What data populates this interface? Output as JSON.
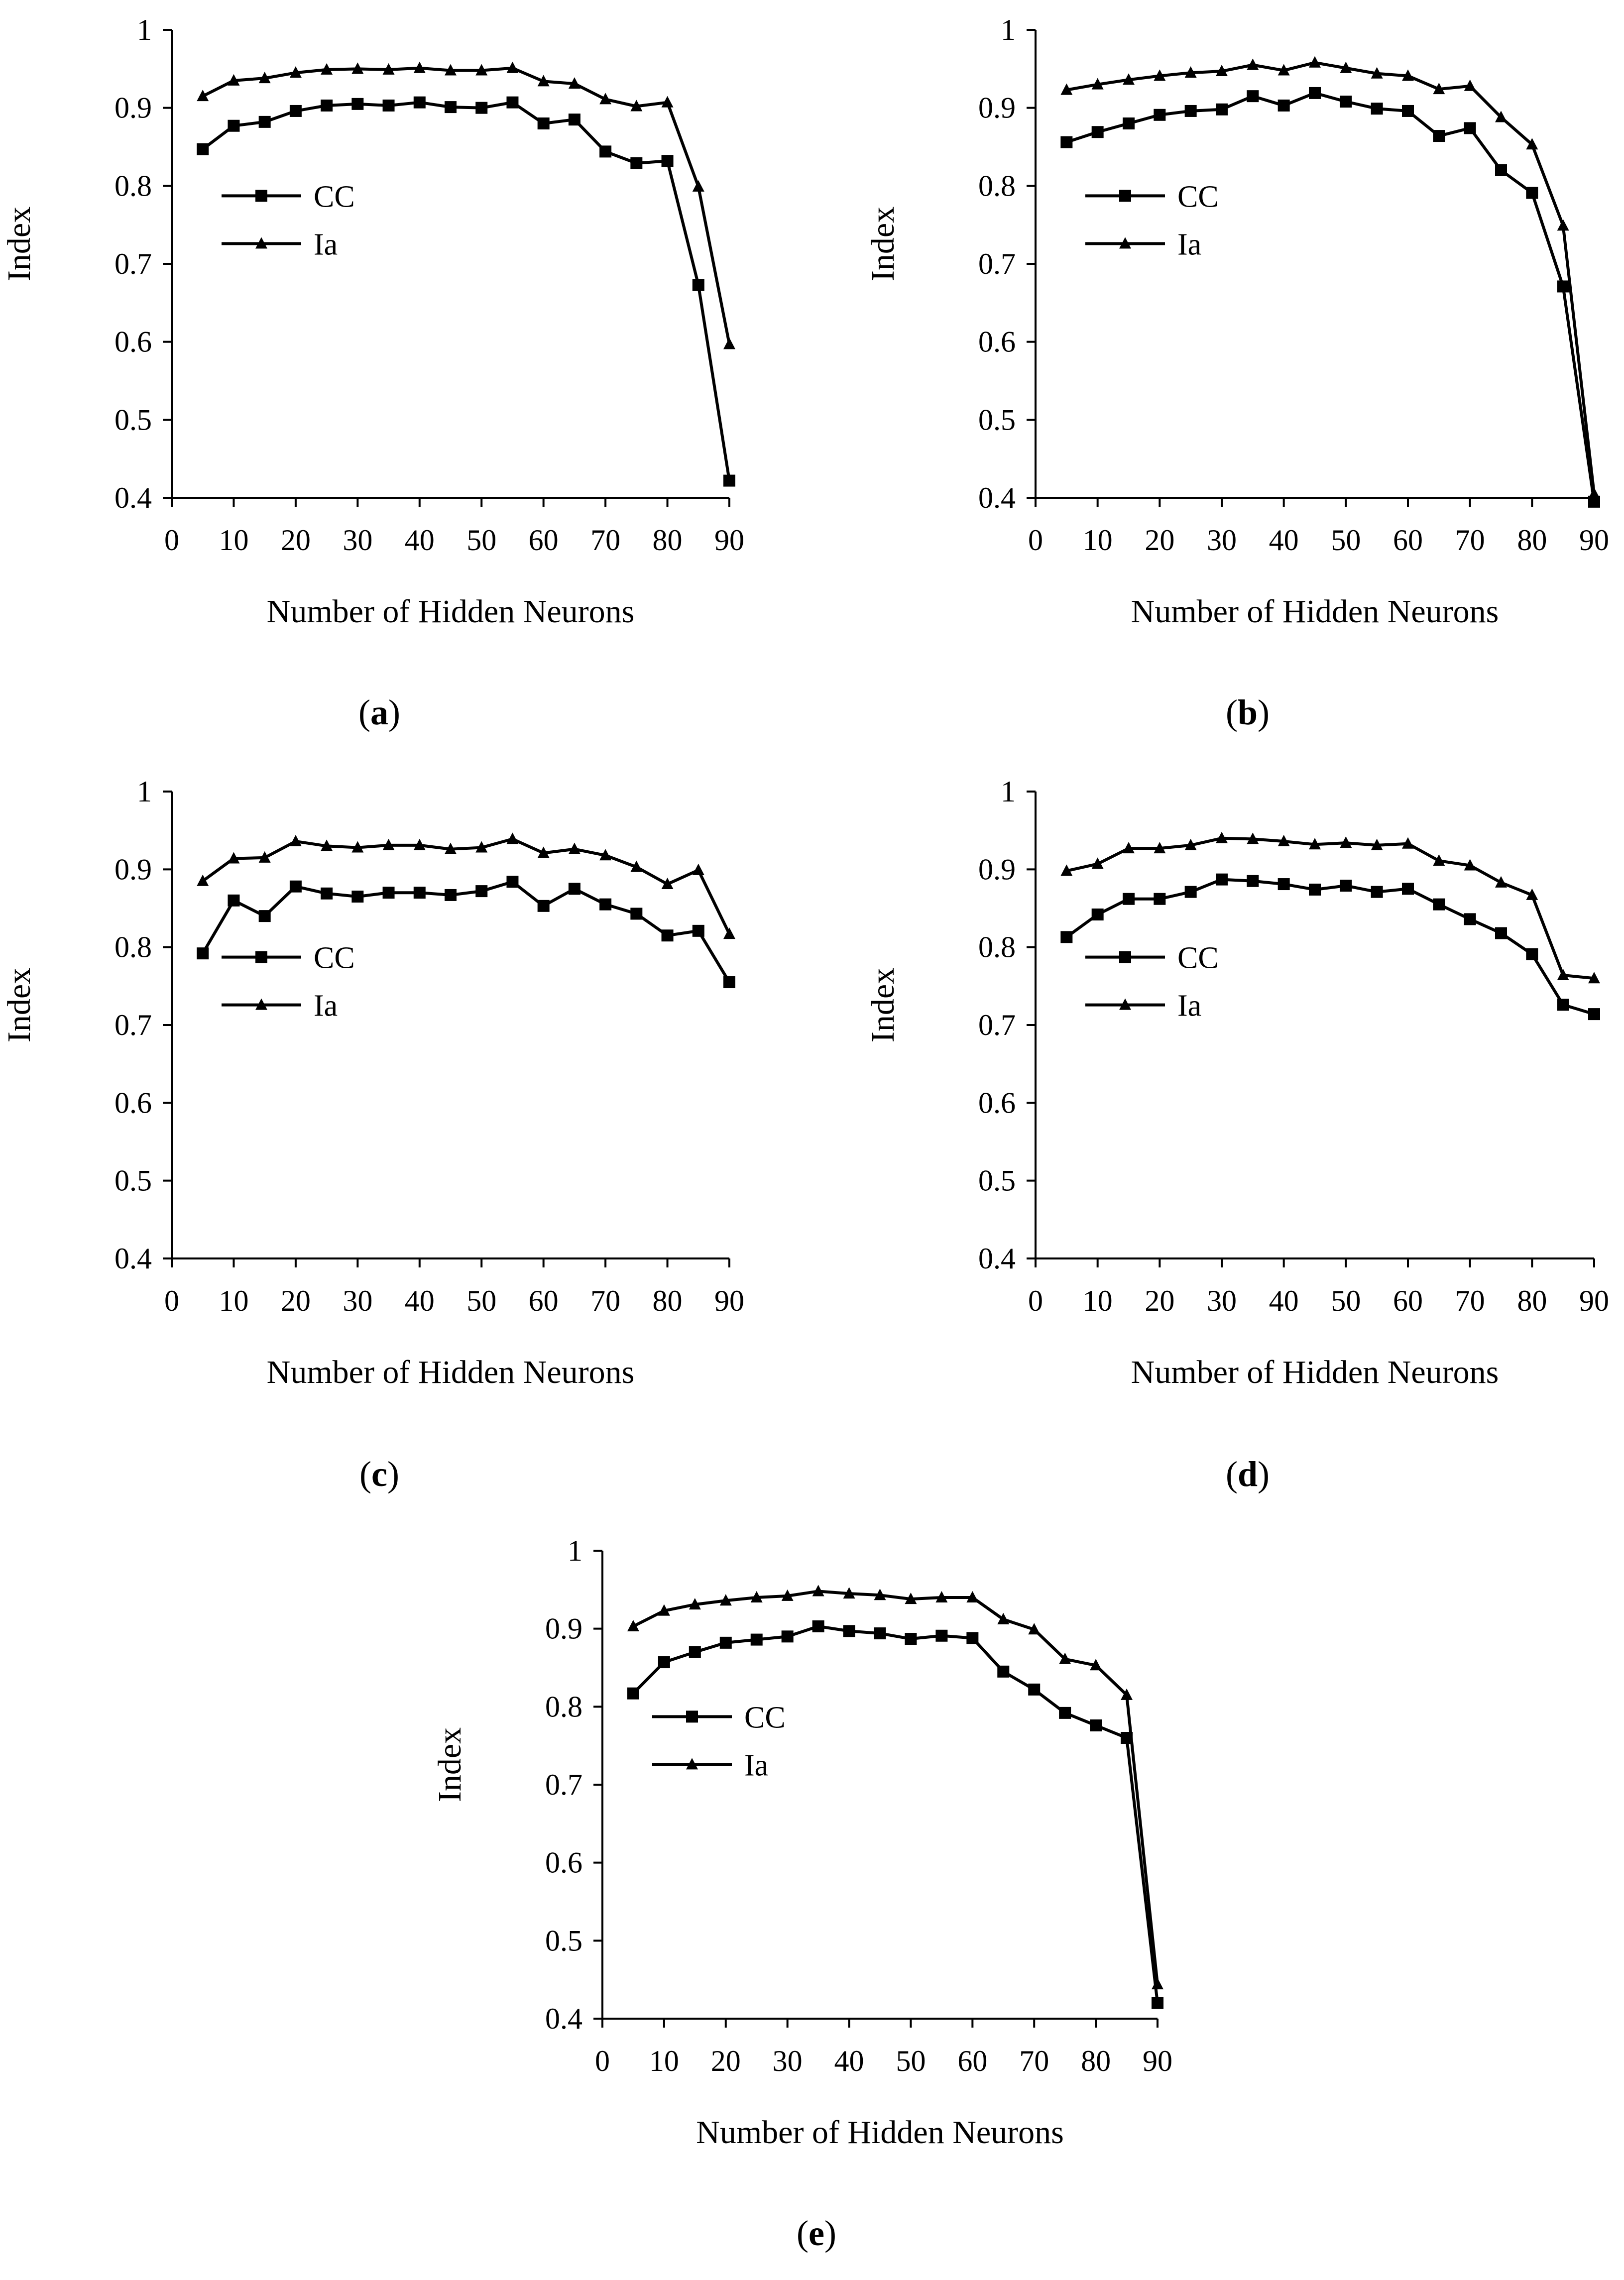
{
  "figure": {
    "captions": [
      "(a)",
      "(b)",
      "(c)",
      "(d)",
      "(e)"
    ]
  },
  "legend": {
    "cc": "CC",
    "ia": "Ia"
  },
  "colors": {
    "line": "#000000",
    "background": "#ffffff"
  },
  "icons": {
    "cc_marker": "square-marker-icon",
    "ia_marker": "triangle-marker-icon"
  },
  "chart_data": [
    {
      "id": "a",
      "type": "line",
      "caption": "(a)",
      "xlabel": "Number of Hidden Neurons",
      "ylabel": "Index",
      "xlim": [
        0,
        90
      ],
      "ylim": [
        0.4,
        1
      ],
      "xticks": [
        0,
        10,
        20,
        30,
        40,
        50,
        60,
        70,
        80,
        90
      ],
      "yticks": [
        0.4,
        0.5,
        0.6,
        0.7,
        0.8,
        0.9,
        1
      ],
      "ytick_labels": [
        "0.4",
        "0.5",
        "0.6",
        "0.7",
        "0.8",
        "0.9",
        "1"
      ],
      "grid": false,
      "legend_position": "center-left",
      "x": [
        5,
        10,
        15,
        20,
        25,
        30,
        35,
        40,
        45,
        50,
        55,
        60,
        65,
        70,
        75,
        80,
        85,
        90
      ],
      "series": [
        {
          "name": "CC",
          "marker": "square",
          "values": [
            0.847,
            0.877,
            0.882,
            0.896,
            0.903,
            0.905,
            0.903,
            0.907,
            0.901,
            0.9,
            0.907,
            0.88,
            0.885,
            0.844,
            0.829,
            0.832,
            0.673,
            0.422
          ]
        },
        {
          "name": "Ia",
          "marker": "triangle",
          "values": [
            0.915,
            0.935,
            0.938,
            0.945,
            0.949,
            0.95,
            0.949,
            0.951,
            0.948,
            0.948,
            0.951,
            0.934,
            0.931,
            0.911,
            0.902,
            0.907,
            0.799,
            0.597
          ]
        }
      ]
    },
    {
      "id": "b",
      "type": "line",
      "caption": "(b)",
      "xlabel": "Number of Hidden Neurons",
      "ylabel": "Index",
      "xlim": [
        0,
        90
      ],
      "ylim": [
        0.4,
        1
      ],
      "xticks": [
        0,
        10,
        20,
        30,
        40,
        50,
        60,
        70,
        80,
        90
      ],
      "yticks": [
        0.4,
        0.5,
        0.6,
        0.7,
        0.8,
        0.9,
        1
      ],
      "ytick_labels": [
        "0.4",
        "0.5",
        "0.6",
        "0.7",
        "0.8",
        "0.9",
        "1"
      ],
      "grid": false,
      "legend_position": "center-left",
      "x": [
        5,
        10,
        15,
        20,
        25,
        30,
        35,
        40,
        45,
        50,
        55,
        60,
        65,
        70,
        75,
        80,
        85,
        90
      ],
      "series": [
        {
          "name": "CC",
          "marker": "square",
          "values": [
            0.856,
            0.869,
            0.88,
            0.891,
            0.896,
            0.898,
            0.915,
            0.903,
            0.919,
            0.908,
            0.899,
            0.896,
            0.864,
            0.874,
            0.82,
            0.791,
            0.671,
            0.395
          ]
        },
        {
          "name": "Ia",
          "marker": "triangle",
          "values": [
            0.923,
            0.93,
            0.936,
            0.941,
            0.945,
            0.947,
            0.955,
            0.948,
            0.958,
            0.951,
            0.944,
            0.941,
            0.924,
            0.928,
            0.888,
            0.853,
            0.749,
            0.405
          ]
        }
      ]
    },
    {
      "id": "c",
      "type": "line",
      "caption": "(c)",
      "xlabel": "Number of Hidden Neurons",
      "ylabel": "Index",
      "xlim": [
        0,
        90
      ],
      "ylim": [
        0.4,
        1
      ],
      "xticks": [
        0,
        10,
        20,
        30,
        40,
        50,
        60,
        70,
        80,
        90
      ],
      "yticks": [
        0.4,
        0.5,
        0.6,
        0.7,
        0.8,
        0.9,
        1
      ],
      "ytick_labels": [
        "0.4",
        "0.5",
        "0.6",
        "0.7",
        "0.8",
        "0.9",
        "1"
      ],
      "grid": false,
      "legend_position": "center-left",
      "x": [
        5,
        10,
        15,
        20,
        25,
        30,
        35,
        40,
        45,
        50,
        55,
        60,
        65,
        70,
        75,
        80,
        85,
        90
      ],
      "series": [
        {
          "name": "CC",
          "marker": "square",
          "values": [
            0.792,
            0.86,
            0.84,
            0.878,
            0.869,
            0.865,
            0.87,
            0.87,
            0.867,
            0.872,
            0.884,
            0.853,
            0.875,
            0.855,
            0.843,
            0.815,
            0.821,
            0.755
          ]
        },
        {
          "name": "Ia",
          "marker": "triangle",
          "values": [
            0.885,
            0.914,
            0.915,
            0.936,
            0.93,
            0.928,
            0.931,
            0.931,
            0.926,
            0.928,
            0.939,
            0.921,
            0.926,
            0.918,
            0.903,
            0.881,
            0.899,
            0.817
          ]
        }
      ]
    },
    {
      "id": "d",
      "type": "line",
      "caption": "(d)",
      "xlabel": "Number of Hidden Neurons",
      "ylabel": "Index",
      "xlim": [
        0,
        90
      ],
      "ylim": [
        0.4,
        1
      ],
      "xticks": [
        0,
        10,
        20,
        30,
        40,
        50,
        60,
        70,
        80,
        90
      ],
      "yticks": [
        0.4,
        0.5,
        0.6,
        0.7,
        0.8,
        0.9,
        1
      ],
      "ytick_labels": [
        "0.4",
        "0.5",
        "0.6",
        "0.7",
        "0.8",
        "0.9",
        "1"
      ],
      "grid": false,
      "legend_position": "center-left",
      "x": [
        5,
        10,
        15,
        20,
        25,
        30,
        35,
        40,
        45,
        50,
        55,
        60,
        65,
        70,
        75,
        80,
        85,
        90
      ],
      "series": [
        {
          "name": "CC",
          "marker": "square",
          "values": [
            0.813,
            0.842,
            0.862,
            0.862,
            0.871,
            0.887,
            0.885,
            0.881,
            0.874,
            0.879,
            0.871,
            0.875,
            0.855,
            0.836,
            0.818,
            0.791,
            0.726,
            0.714
          ]
        },
        {
          "name": "Ia",
          "marker": "triangle",
          "values": [
            0.898,
            0.907,
            0.927,
            0.927,
            0.931,
            0.94,
            0.939,
            0.936,
            0.932,
            0.934,
            0.931,
            0.933,
            0.911,
            0.905,
            0.883,
            0.867,
            0.764,
            0.76
          ]
        }
      ]
    },
    {
      "id": "e",
      "type": "line",
      "caption": "(e)",
      "xlabel": "Number of Hidden Neurons",
      "ylabel": "Index",
      "xlim": [
        0,
        90
      ],
      "ylim": [
        0.4,
        1
      ],
      "xticks": [
        0,
        10,
        20,
        30,
        40,
        50,
        60,
        70,
        80,
        90
      ],
      "yticks": [
        0.4,
        0.5,
        0.6,
        0.7,
        0.8,
        0.9,
        1
      ],
      "ytick_labels": [
        "0.4",
        "0.5",
        "0.6",
        "0.7",
        "0.8",
        "0.9",
        "1"
      ],
      "grid": false,
      "legend_position": "center-left",
      "x": [
        5,
        10,
        15,
        20,
        25,
        30,
        35,
        40,
        45,
        50,
        55,
        60,
        65,
        70,
        75,
        80,
        85,
        90
      ],
      "series": [
        {
          "name": "CC",
          "marker": "square",
          "values": [
            0.817,
            0.857,
            0.87,
            0.882,
            0.886,
            0.89,
            0.903,
            0.897,
            0.894,
            0.887,
            0.891,
            0.888,
            0.845,
            0.822,
            0.792,
            0.776,
            0.76,
            0.42
          ]
        },
        {
          "name": "Ia",
          "marker": "triangle",
          "values": [
            0.903,
            0.923,
            0.931,
            0.936,
            0.94,
            0.942,
            0.948,
            0.945,
            0.943,
            0.938,
            0.94,
            0.94,
            0.912,
            0.899,
            0.861,
            0.853,
            0.815,
            0.444
          ]
        }
      ]
    }
  ]
}
